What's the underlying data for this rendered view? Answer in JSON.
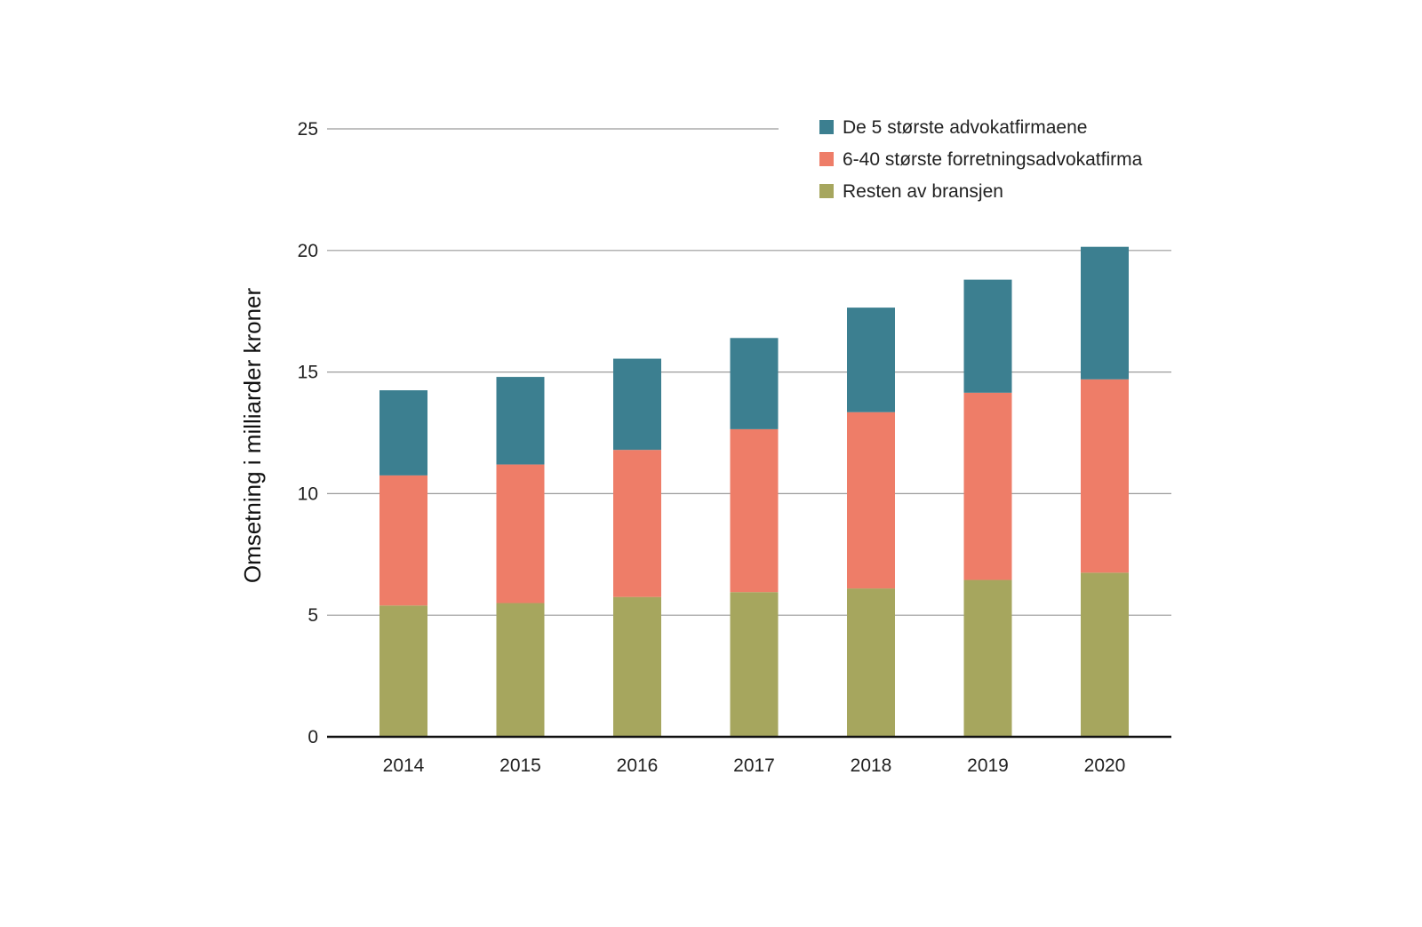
{
  "chart_data": {
    "type": "bar",
    "stacked": true,
    "title": "",
    "xlabel": "",
    "ylabel": "Omsetning i milliarder kroner",
    "ylim": [
      0,
      25
    ],
    "yticks": [
      0,
      5,
      10,
      15,
      20,
      25
    ],
    "grid": true,
    "legend_position": "top-right",
    "categories": [
      "2014",
      "2015",
      "2016",
      "2017",
      "2018",
      "2019",
      "2020"
    ],
    "series": [
      {
        "name": "Resten av bransjen",
        "color": "#a6a65e",
        "values": [
          5.4,
          5.5,
          5.75,
          5.95,
          6.1,
          6.45,
          6.75
        ]
      },
      {
        "name": "6-40 største forretningsadvokatfirma",
        "color": "#ee7d68",
        "values": [
          5.35,
          5.7,
          6.05,
          6.7,
          7.25,
          7.7,
          7.95
        ]
      },
      {
        "name": "De 5 største advokatfirmaene",
        "color": "#3c7f90",
        "values": [
          3.5,
          3.6,
          3.75,
          3.75,
          4.3,
          4.65,
          5.45
        ]
      }
    ],
    "legend_order": [
      "De 5 største advokatfirmaene",
      "6-40 største forretningsadvokatfirma",
      "Resten av bransjen"
    ],
    "colors": {
      "grid": "#9a9a9a",
      "baseline": "#111111"
    }
  }
}
